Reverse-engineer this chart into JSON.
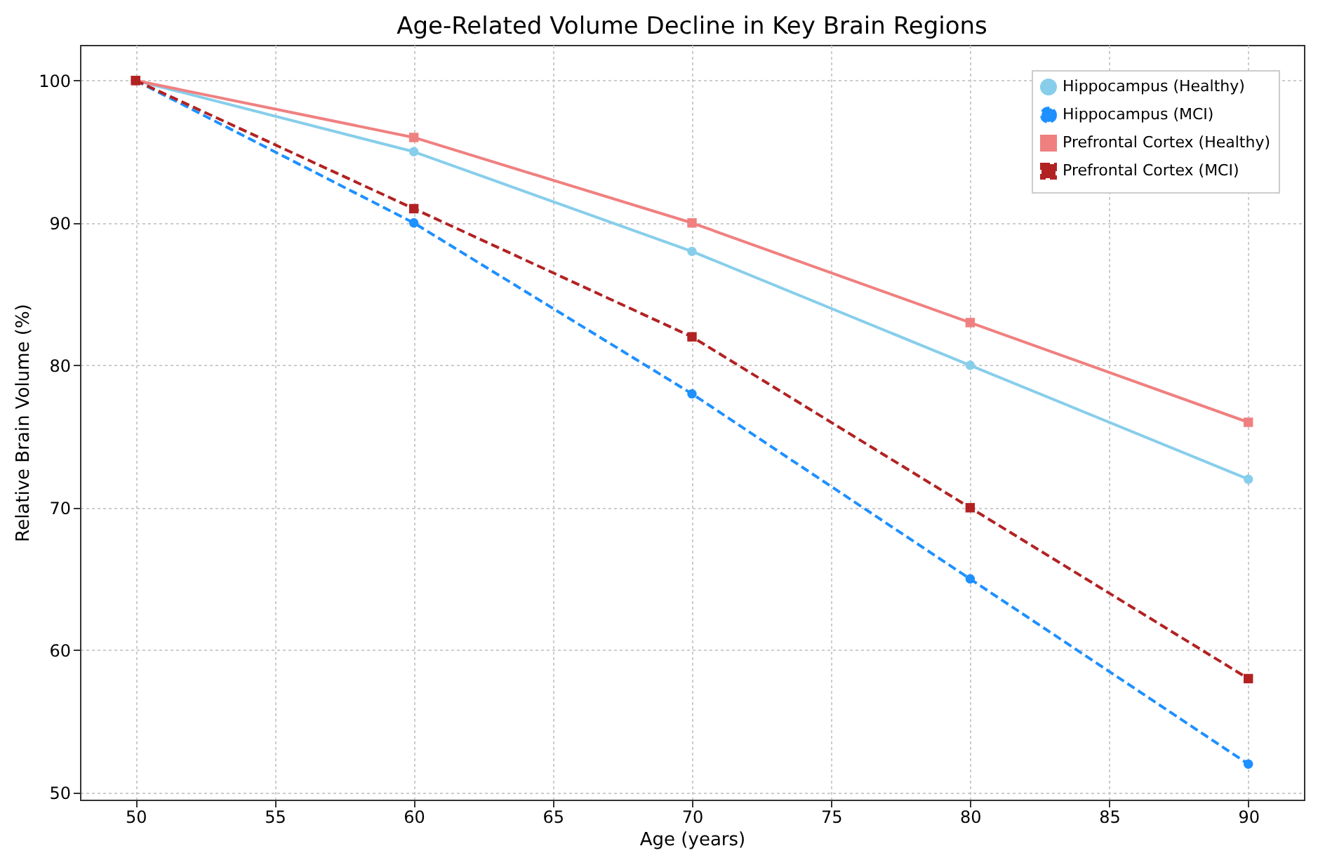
{
  "chart_data": {
    "type": "line",
    "title": "Age-Related Volume Decline in Key Brain Regions",
    "xlabel": "Age (years)",
    "ylabel": "Relative Brain Volume (%)",
    "x": [
      50,
      60,
      70,
      80,
      90
    ],
    "series": [
      {
        "name": "Hippocampus (Healthy)",
        "color": "#87ceeb",
        "values": [
          100,
          95,
          88,
          80,
          72
        ],
        "marker": "circle",
        "line_style": "solid"
      },
      {
        "name": "Hippocampus (MCI)",
        "color": "#1e90ff",
        "values": [
          100,
          90,
          78,
          65,
          52
        ],
        "marker": "circle",
        "line_style": "dashed"
      },
      {
        "name": "Prefrontal Cortex (Healthy)",
        "color": "#f08080",
        "values": [
          100,
          96,
          90,
          83,
          76
        ],
        "marker": "square",
        "line_style": "solid"
      },
      {
        "name": "Prefrontal Cortex (MCI)",
        "color": "#b22222",
        "values": [
          100,
          91,
          82,
          70,
          58
        ],
        "marker": "square",
        "line_style": "dashed"
      }
    ],
    "xlim": [
      48,
      92
    ],
    "xticks": [
      50,
      55,
      60,
      65,
      70,
      75,
      80,
      85,
      90
    ],
    "ylim": [
      49.5,
      102.5
    ],
    "yticks": [
      50,
      60,
      70,
      80,
      90,
      100
    ],
    "grid": true,
    "legend": "top right"
  }
}
